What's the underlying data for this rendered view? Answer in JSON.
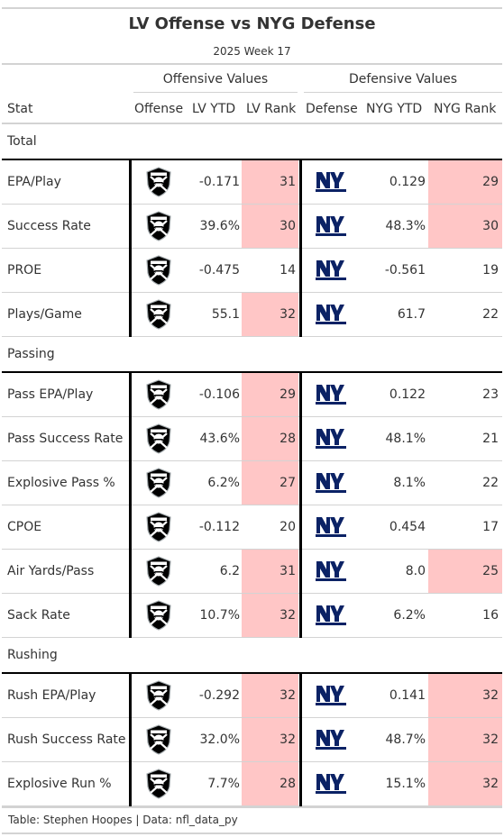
{
  "title": "LV Offense vs NYG Defense",
  "subtitle": "2025 Week 17",
  "spanners": {
    "offense": "Offensive Values",
    "defense": "Defensive Values"
  },
  "columns": {
    "stat": "Stat",
    "offense": "Offense",
    "off_ytd": "LV YTD",
    "off_rank": "LV Rank",
    "defense": "Defense",
    "def_ytd": "NYG YTD",
    "def_rank": "NYG Rank"
  },
  "logos": {
    "offense": "raiders-logo",
    "defense": "giants-logo"
  },
  "colors": {
    "bad_rank_highlight": "#ffc6c6",
    "giants_blue": "#0b2265",
    "rule": "#d3d3d3"
  },
  "groups": [
    {
      "label": "Total",
      "rows": [
        {
          "stat": "EPA/Play",
          "off_ytd": "-0.171",
          "off_rank": "31",
          "off_bad": true,
          "def_ytd": "0.129",
          "def_rank": "29",
          "def_bad": true
        },
        {
          "stat": "Success Rate",
          "off_ytd": "39.6%",
          "off_rank": "30",
          "off_bad": true,
          "def_ytd": "48.3%",
          "def_rank": "30",
          "def_bad": true
        },
        {
          "stat": "PROE",
          "off_ytd": "-0.475",
          "off_rank": "14",
          "off_bad": false,
          "def_ytd": "-0.561",
          "def_rank": "19",
          "def_bad": false
        },
        {
          "stat": "Plays/Game",
          "off_ytd": "55.1",
          "off_rank": "32",
          "off_bad": true,
          "def_ytd": "61.7",
          "def_rank": "22",
          "def_bad": false
        }
      ]
    },
    {
      "label": "Passing",
      "rows": [
        {
          "stat": "Pass EPA/Play",
          "off_ytd": "-0.106",
          "off_rank": "29",
          "off_bad": true,
          "def_ytd": "0.122",
          "def_rank": "23",
          "def_bad": false
        },
        {
          "stat": "Pass Success Rate",
          "off_ytd": "43.6%",
          "off_rank": "28",
          "off_bad": true,
          "def_ytd": "48.1%",
          "def_rank": "21",
          "def_bad": false
        },
        {
          "stat": "Explosive Pass %",
          "off_ytd": "6.2%",
          "off_rank": "27",
          "off_bad": true,
          "def_ytd": "8.1%",
          "def_rank": "22",
          "def_bad": false
        },
        {
          "stat": "CPOE",
          "off_ytd": "-0.112",
          "off_rank": "20",
          "off_bad": false,
          "def_ytd": "0.454",
          "def_rank": "17",
          "def_bad": false
        },
        {
          "stat": "Air Yards/Pass",
          "off_ytd": "6.2",
          "off_rank": "31",
          "off_bad": true,
          "def_ytd": "8.0",
          "def_rank": "25",
          "def_bad": true
        },
        {
          "stat": "Sack Rate",
          "off_ytd": "10.7%",
          "off_rank": "32",
          "off_bad": true,
          "def_ytd": "6.2%",
          "def_rank": "16",
          "def_bad": false
        }
      ]
    },
    {
      "label": "Rushing",
      "rows": [
        {
          "stat": "Rush EPA/Play",
          "off_ytd": "-0.292",
          "off_rank": "32",
          "off_bad": true,
          "def_ytd": "0.141",
          "def_rank": "32",
          "def_bad": true
        },
        {
          "stat": "Rush Success Rate",
          "off_ytd": "32.0%",
          "off_rank": "32",
          "off_bad": true,
          "def_ytd": "48.7%",
          "def_rank": "32",
          "def_bad": true
        },
        {
          "stat": "Explosive Run %",
          "off_ytd": "7.7%",
          "off_rank": "28",
          "off_bad": true,
          "def_ytd": "15.1%",
          "def_rank": "32",
          "def_bad": true
        }
      ]
    }
  ],
  "footer": "Table: Stephen Hoopes | Data: nfl_data_py"
}
